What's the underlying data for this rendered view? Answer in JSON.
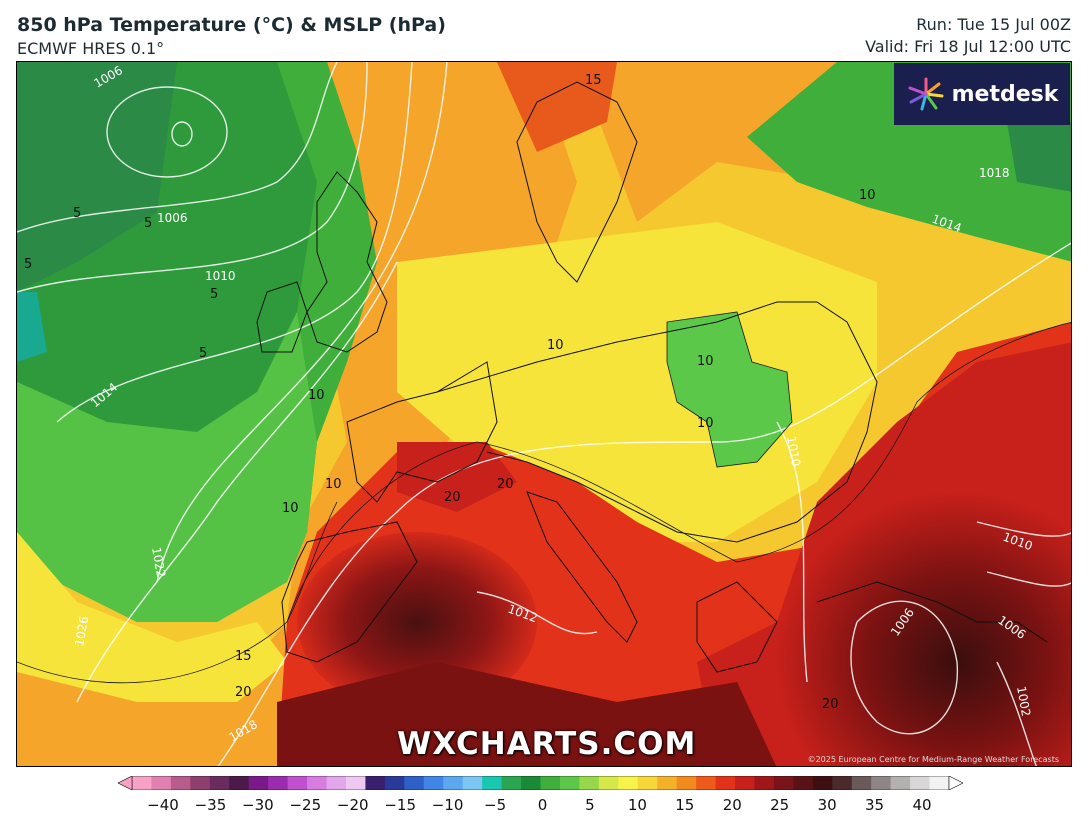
{
  "header": {
    "title": "850 hPa Temperature (°C) & MSLP (hPa)",
    "model": "ECMWF HRES 0.1°",
    "run": "Run: Tue 15 Jul 00Z",
    "valid": "Valid: Fri 18 Jul 12:00 UTC"
  },
  "brand": {
    "logo_text": "metdesk",
    "watermark": "WXCHARTS.COM",
    "credit": "©2025 European Centre for Medium-Range Weather Forecasts"
  },
  "colorbar": {
    "ticks": [
      "−40",
      "−35",
      "−30",
      "−25",
      "−20",
      "−15",
      "−10",
      "−5",
      "0",
      "5",
      "10",
      "15",
      "20",
      "25",
      "30",
      "35",
      "40"
    ],
    "colors": [
      "#f7a1c4",
      "#e07fb0",
      "#b85c8c",
      "#8e3f6e",
      "#6a2c5c",
      "#4a1a4a",
      "#7a1a8a",
      "#9b2cb0",
      "#c050d0",
      "#d77ce0",
      "#e2a6ea",
      "#efc8f2",
      "#3a1f6e",
      "#2a3a9a",
      "#2f5fc8",
      "#3f86e6",
      "#5aa8f0",
      "#7cc6f4",
      "#19c8b0",
      "#2aa650",
      "#1b8a36",
      "#3fae3a",
      "#5cc84a",
      "#96d84a",
      "#d4e84a",
      "#f7f34a",
      "#f7d63a",
      "#f5b02a",
      "#f28a1f",
      "#ee5a1a",
      "#e2331a",
      "#c8201a",
      "#a0171a",
      "#7a141a",
      "#5a1216",
      "#3d0f12",
      "#4a2a2a",
      "#6a5a5a",
      "#8e8686",
      "#b4b0b0",
      "#d8d6d6",
      "#f2f2f2"
    ]
  },
  "map": {
    "temperature_labels": [
      "15",
      "10",
      "10",
      "10",
      "10",
      "10",
      "10",
      "10",
      "20",
      "20",
      "20",
      "15",
      "20",
      "5",
      "5",
      "5",
      "5",
      "5"
    ],
    "isobar_labels": [
      "1006",
      "1006",
      "1010",
      "1014",
      "1022",
      "1026",
      "1018",
      "1018",
      "1014",
      "1010",
      "1012",
      "1006",
      "1006",
      "1002",
      "1010"
    ],
    "colors": {
      "ocean_green": "#3a9e3a",
      "deep_green": "#2e8a40",
      "yellow": "#f7e43a",
      "orange": "#f5a52a",
      "red": "#e4331c",
      "dark_red": "#7a1212",
      "very_dark": "#3a0e0e"
    }
  }
}
